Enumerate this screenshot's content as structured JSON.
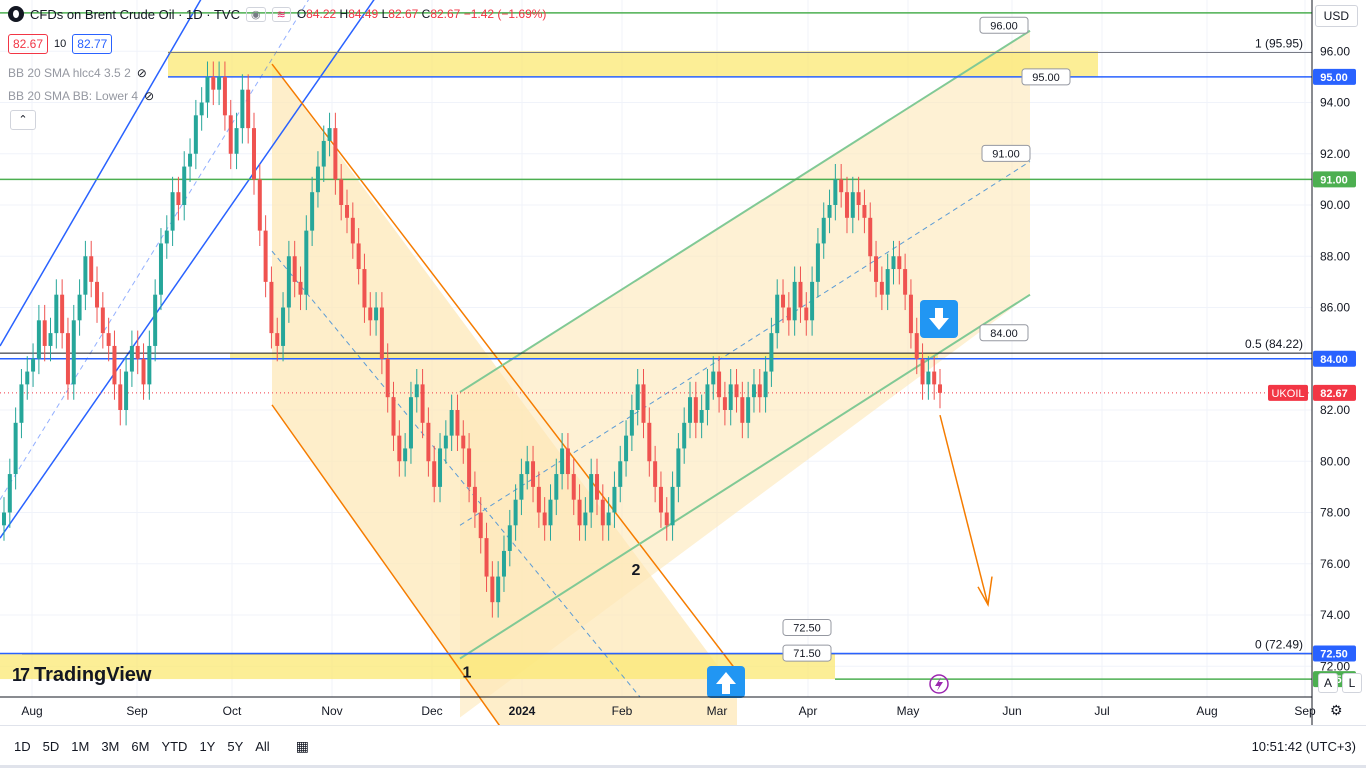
{
  "header": {
    "title": "CFDs on Brent Crude Oil · 1D · TVC",
    "ohlc": {
      "o_label": "O",
      "o": "84.22",
      "h_label": "H",
      "h": "84.49",
      "l_label": "L",
      "l": "82.67",
      "c_label": "C",
      "c": "82.67",
      "chg": "−1.42 (−1.69%)"
    },
    "bid": "82.67",
    "spread": "10",
    "ask": "82.77",
    "currency": "USD"
  },
  "indicators": [
    {
      "label": "BB 20 SMA hlcc4 3.5 2"
    },
    {
      "label": "BB 20 SMA BB: Lower 4"
    }
  ],
  "branding": {
    "logo_text": "TradingView"
  },
  "time_ranges": [
    "1D",
    "5D",
    "1M",
    "3M",
    "6M",
    "YTD",
    "1Y",
    "5Y",
    "All"
  ],
  "clock": "10:51:42 (UTC+3)",
  "scale_buttons": [
    "A",
    "L"
  ],
  "colors": {
    "up": "#26a69a",
    "down": "#ef5350",
    "channel_blue": "#2962ff",
    "channel_green": "#81c995",
    "zone_yellow": "#fbe873",
    "fill_orange": "#fde8b8",
    "arrow": "#f57c00",
    "line_green": "#4caf50"
  },
  "chart_data": {
    "type": "candlestick",
    "symbol": "UKOIL",
    "last_price": 82.67,
    "ylim": [
      70.8,
      98.0
    ],
    "y_ticks": [
      72.0,
      74.0,
      76.0,
      78.0,
      80.0,
      82.0,
      86.0,
      88.0,
      90.0,
      92.0,
      94.0,
      96.0
    ],
    "y_tick_labels": [
      "72.00",
      "74.00",
      "76.00",
      "78.00",
      "80.00",
      "82.00",
      "86.00",
      "88.00",
      "90.00",
      "92.00",
      "94.00",
      "96.00"
    ],
    "x_ticks": [
      "Aug",
      "Sep",
      "Oct",
      "Nov",
      "Dec",
      "2024",
      "Feb",
      "Mar",
      "Apr",
      "May",
      "Jun",
      "Jul",
      "Aug",
      "Sep"
    ],
    "price_tags": [
      {
        "value": 95.0,
        "label": "95.00",
        "color": "#2962ff"
      },
      {
        "value": 91.0,
        "label": "91.00",
        "color": "#4caf50"
      },
      {
        "value": 84.0,
        "label": "84.00",
        "color": "#2962ff"
      },
      {
        "value": 82.67,
        "label": "82.67",
        "color": "#f23645"
      },
      {
        "value": 72.5,
        "label": "72.50",
        "color": "#2962ff"
      },
      {
        "value": 71.5,
        "label": "71.50",
        "color": "#4caf50"
      }
    ],
    "symbol_tag": "UKOIL",
    "fib_levels": [
      {
        "value": 95.95,
        "label": "1 (95.95)"
      },
      {
        "value": 84.22,
        "label": "0.5 (84.22)"
      },
      {
        "value": 72.49,
        "label": "0 (72.49)"
      }
    ],
    "callouts": [
      {
        "value": 96.0,
        "label": "96.00"
      },
      {
        "value": 95.0,
        "label": "95.00"
      },
      {
        "value": 91.0,
        "label": "91.00"
      },
      {
        "value": 84.0,
        "label": "84.00"
      },
      {
        "value": 72.5,
        "label": "72.50"
      },
      {
        "value": 71.5,
        "label": "71.50"
      }
    ],
    "markers": [
      {
        "label": "1"
      },
      {
        "label": "2"
      }
    ],
    "series_close": [
      78.0,
      79.5,
      81.5,
      83.0,
      83.5,
      84.0,
      85.5,
      84.5,
      85.0,
      86.5,
      85.0,
      83.0,
      85.5,
      86.5,
      88.0,
      87.0,
      86.0,
      85.0,
      84.5,
      83.0,
      82.0,
      83.5,
      84.5,
      84.0,
      83.0,
      84.5,
      86.5,
      88.5,
      89.0,
      90.5,
      90.0,
      91.5,
      92.0,
      93.5,
      94.0,
      95.0,
      94.5,
      95.0,
      93.5,
      92.0,
      93.0,
      94.5,
      93.0,
      91.0,
      89.0,
      87.0,
      85.0,
      84.5,
      86.0,
      88.0,
      87.0,
      86.5,
      89.0,
      90.5,
      91.5,
      92.5,
      93.0,
      91.0,
      90.0,
      89.5,
      88.5,
      87.5,
      86.0,
      85.5,
      86.0,
      84.0,
      82.5,
      81.0,
      80.0,
      80.5,
      82.5,
      83.0,
      81.5,
      80.0,
      79.0,
      80.5,
      81.0,
      82.0,
      81.0,
      80.5,
      79.0,
      78.0,
      77.0,
      75.5,
      74.5,
      75.5,
      76.5,
      77.5,
      78.5,
      79.5,
      80.0,
      79.0,
      78.0,
      77.5,
      78.5,
      79.5,
      80.5,
      79.5,
      78.5,
      77.5,
      78.0,
      79.5,
      78.5,
      77.5,
      78.0,
      79.0,
      80.0,
      81.0,
      82.0,
      83.0,
      81.5,
      80.0,
      79.0,
      78.0,
      77.5,
      79.0,
      80.5,
      81.5,
      82.5,
      81.5,
      82.0,
      83.0,
      83.5,
      82.5,
      82.0,
      83.0,
      82.5,
      81.5,
      82.5,
      83.0,
      82.5,
      83.5,
      85.0,
      86.5,
      86.0,
      85.5,
      87.0,
      86.0,
      85.5,
      87.0,
      88.5,
      89.5,
      90.0,
      91.0,
      90.5,
      89.5,
      90.5,
      90.0,
      89.5,
      88.0,
      87.0,
      86.5,
      87.5,
      88.0,
      87.5,
      86.5,
      85.0,
      84.0,
      83.0,
      83.5,
      83.0,
      82.67
    ]
  }
}
